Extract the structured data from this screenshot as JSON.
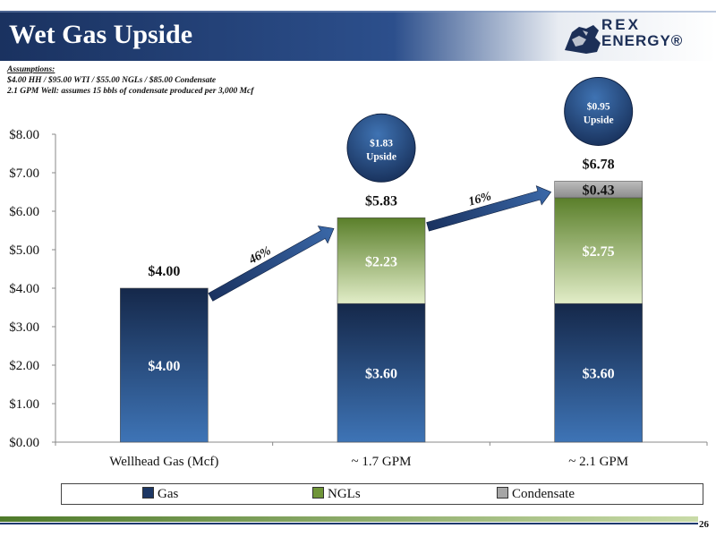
{
  "slide": {
    "title": "Wet Gas Upside",
    "logo_line1": "REX",
    "logo_line2": "ENERGY®",
    "assumptions_heading": "Assumptions:",
    "assumptions_line1": "$4.00 HH / $95.00 WTI / $55.00 NGLs / $85.00 Condensate",
    "assumptions_line2": "2.1 GPM Well: assumes 15 bbls of condensate produced per 3,000 Mcf",
    "page_number": "26"
  },
  "colors": {
    "banner": "#1f3a6e",
    "gas": "#1d3764",
    "ngls": "#6f9538",
    "condensate": "#a6a6a6",
    "arrow": "#1f3a6e"
  },
  "chart_data": {
    "type": "bar",
    "stacked": true,
    "categories": [
      "Wellhead Gas (Mcf)",
      "~ 1.7 GPM",
      "~ 2.1 GPM"
    ],
    "series": [
      {
        "name": "Gas",
        "values": [
          4.0,
          3.6,
          3.6
        ],
        "labels": [
          "$4.00",
          "$3.60",
          "$3.60"
        ]
      },
      {
        "name": "NGLs",
        "values": [
          0,
          2.23,
          2.75
        ],
        "labels": [
          "",
          "$2.23",
          "$2.75"
        ]
      },
      {
        "name": "Condensate",
        "values": [
          0,
          0,
          0.43
        ],
        "labels": [
          "",
          "",
          "$0.43"
        ]
      }
    ],
    "totals": [
      "$4.00",
      "$5.83",
      "$6.78"
    ],
    "ylim": [
      0,
      8
    ],
    "yticks": [
      "$0.00",
      "$1.00",
      "$2.00",
      "$3.00",
      "$4.00",
      "$5.00",
      "$6.00",
      "$7.00",
      "$8.00"
    ],
    "legend_position": "bottom",
    "grid": false,
    "annotations": {
      "arrows": [
        "46%",
        "16%"
      ],
      "upside_bubbles": [
        {
          "value": "$1.83",
          "label": "Upside"
        },
        {
          "value": "$0.95",
          "label": "Upside"
        }
      ]
    }
  }
}
